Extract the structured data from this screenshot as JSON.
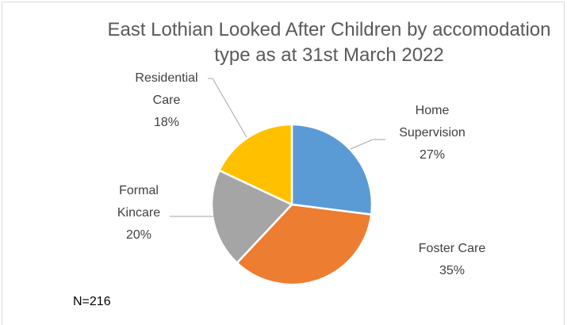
{
  "chart_data": {
    "type": "pie",
    "title": "East Lothian Looked After Children by accomodation type as at 31st March 2022",
    "categories": [
      "Home Supervision",
      "Foster Care",
      "Formal Kincare",
      "Residential Care"
    ],
    "values": [
      27,
      35,
      20,
      18
    ],
    "value_labels": [
      "27%",
      "35%",
      "20%",
      "18%"
    ],
    "colors": [
      "#5b9bd5",
      "#ed7d31",
      "#a5a5a5",
      "#ffc000"
    ],
    "annotation": "N=216"
  }
}
